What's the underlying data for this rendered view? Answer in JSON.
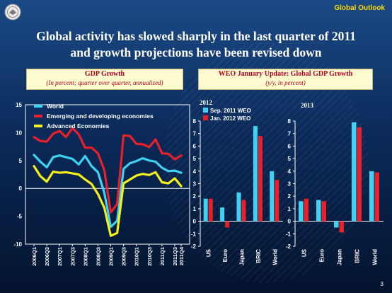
{
  "header": {
    "brand": "Global Outlook",
    "page_number": "3",
    "logo": "imf-seal-icon"
  },
  "title_lines": [
    "Global activity has slowed sharply in the last quarter of 2011",
    "and growth projections have been revised down"
  ],
  "boxes": {
    "gdp": {
      "title": "GDP Growth",
      "subtitle": "(In percent; quarter over quarter, annualized)"
    },
    "weo": {
      "title": "WEO January Update: Global GDP Growth",
      "subtitle": "(y/y, in percent)"
    }
  },
  "chart_data": [
    {
      "type": "line",
      "title": "GDP Growth",
      "subtitle": "(In percent; quarter over quarter, annualized)",
      "ylim": [
        -10,
        15
      ],
      "yticks": [
        -10,
        -5,
        0,
        5,
        10,
        15
      ],
      "x": [
        "2006Q1",
        "2006Q2",
        "2006Q3",
        "2006Q4",
        "2007Q1",
        "2007Q2",
        "2007Q3",
        "2007Q4",
        "2008Q1",
        "2008Q2",
        "2008Q3",
        "2008Q4",
        "2009Q1",
        "2009Q2",
        "2009Q3",
        "2009Q4",
        "2010Q1",
        "2010Q2",
        "2010Q3",
        "2010Q4",
        "2011Q1",
        "2011Q2",
        "2011Q3",
        "2011Q4"
      ],
      "xtick_labels": [
        "2006Q1",
        "2006Q3",
        "2007Q1",
        "2007Q3",
        "2008Q1",
        "2008Q3",
        "2009Q1",
        "2009Q3",
        "2010Q1",
        "2010Q3",
        "2011Q1",
        "2011Q3",
        "2011Q4"
      ],
      "legend_position": "top-left",
      "series": [
        {
          "name": "World",
          "color": "#3fd2f2",
          "values": [
            6.0,
            4.8,
            3.8,
            5.6,
            5.9,
            5.6,
            5.3,
            4.3,
            5.8,
            4.0,
            2.9,
            -0.8,
            -6.9,
            -5.8,
            3.5,
            4.5,
            4.9,
            5.4,
            5.0,
            4.8,
            3.7,
            3.1,
            3.2,
            2.8
          ]
        },
        {
          "name": "Emerging and developing economies",
          "color": "#e8202a",
          "values": [
            9.2,
            8.5,
            8.4,
            9.8,
            10.3,
            9.2,
            10.8,
            9.7,
            7.3,
            7.3,
            6.3,
            3.2,
            -4.3,
            -2.8,
            9.5,
            9.4,
            8.0,
            7.9,
            7.4,
            8.8,
            6.3,
            6.2,
            5.2,
            5.9
          ]
        },
        {
          "name": "Advanced Economies",
          "color": "#f5ef1a",
          "values": [
            4.0,
            2.2,
            1.2,
            3.0,
            2.8,
            2.9,
            2.7,
            2.5,
            1.6,
            0.8,
            -1.0,
            -3.5,
            -8.5,
            -8.0,
            0.9,
            1.6,
            2.3,
            2.6,
            2.4,
            2.9,
            1.1,
            0.9,
            1.8,
            0.4
          ]
        }
      ]
    },
    {
      "type": "bar",
      "title": "2012",
      "categories": [
        "US",
        "Euro",
        "Japan",
        "BRIC",
        "World"
      ],
      "ylim": [
        -2,
        8
      ],
      "yticks": [
        -2,
        -1,
        0,
        1,
        2,
        3,
        4,
        5,
        6,
        7,
        8
      ],
      "legend_position": "top-left",
      "series": [
        {
          "name": "Sep. 2011 WEO",
          "color": "#3fd2f2",
          "values": [
            1.8,
            1.1,
            2.3,
            7.6,
            4.0
          ]
        },
        {
          "name": "Jan. 2012 WEO",
          "color": "#e8202a",
          "values": [
            1.8,
            -0.5,
            1.7,
            6.8,
            3.3
          ]
        }
      ]
    },
    {
      "type": "bar",
      "title": "2013",
      "categories": [
        "US",
        "Euro",
        "Japan",
        "BRIC",
        "World"
      ],
      "ylim": [
        -2,
        8
      ],
      "yticks": [
        -2,
        -1,
        0,
        1,
        2,
        3,
        4,
        5,
        6,
        7,
        8
      ],
      "series": [
        {
          "name": "Sep. 2011 WEO",
          "color": "#3fd2f2",
          "values": [
            1.6,
            1.7,
            -0.5,
            7.9,
            4.0
          ]
        },
        {
          "name": "Jan. 2012 WEO",
          "color": "#e8202a",
          "values": [
            1.8,
            1.6,
            -0.9,
            7.5,
            3.9
          ]
        }
      ]
    }
  ]
}
